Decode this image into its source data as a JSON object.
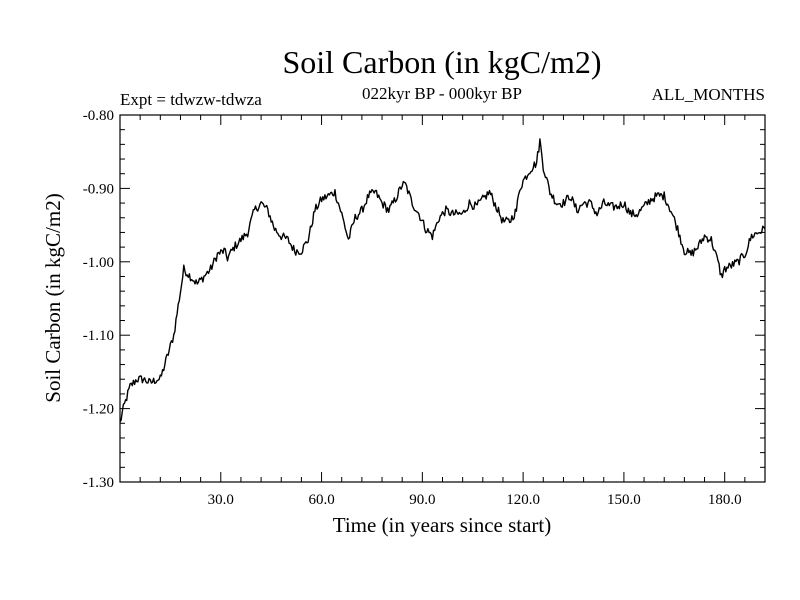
{
  "chart_data": {
    "type": "line",
    "title": "Soil Carbon (in kgC/m2)",
    "expt_label": "Expt = tdwzw-tdwza",
    "period_label": "022kyr BP - 000kyr BP",
    "months_label": "ALL_MONTHS",
    "xlabel": "Time (in years since start)",
    "ylabel": "Soil Carbon (in kgC/m2)",
    "xlim": [
      0,
      192
    ],
    "ylim": [
      -1.3,
      -0.8
    ],
    "xticks": [
      30,
      60,
      90,
      120,
      150,
      180
    ],
    "xtick_labels": [
      "30.0",
      "60.0",
      "90.0",
      "120.0",
      "150.0",
      "180.0"
    ],
    "yticks": [
      -1.3,
      -1.2,
      -1.1,
      -1.0,
      -0.9,
      -0.8
    ],
    "ytick_labels": [
      "-1.30",
      "-1.20",
      "-1.10",
      "-1.00",
      "-0.90",
      "-0.80"
    ],
    "series": [
      {
        "name": "Soil Carbon",
        "x": [
          0,
          1,
          3,
          5,
          7,
          9,
          11,
          12,
          14,
          16,
          17,
          18,
          19,
          21,
          23,
          25,
          27,
          29,
          31,
          32,
          34,
          36,
          38,
          40,
          42,
          44,
          46,
          48,
          50,
          52,
          54,
          56,
          58,
          60,
          62,
          64,
          66,
          68,
          70,
          72,
          74,
          76,
          78,
          80,
          82,
          84,
          85,
          87,
          89,
          91,
          93,
          95,
          97,
          99,
          102,
          104,
          106,
          108,
          110,
          112,
          114,
          116,
          118,
          119,
          120,
          122,
          124,
          125,
          126,
          128,
          130,
          132,
          134,
          136,
          138,
          140,
          142,
          144,
          146,
          148,
          150,
          152,
          154,
          156,
          158,
          160,
          162,
          164,
          166,
          168,
          170,
          172,
          174,
          176,
          178,
          179,
          180,
          182,
          184,
          186,
          188,
          190,
          192
        ],
        "values": [
          -1.22,
          -1.2,
          -1.17,
          -1.16,
          -1.16,
          -1.165,
          -1.16,
          -1.16,
          -1.13,
          -1.1,
          -1.07,
          -1.04,
          -1.01,
          -1.02,
          -1.03,
          -1.02,
          -1.01,
          -0.99,
          -0.985,
          -0.995,
          -0.98,
          -0.97,
          -0.96,
          -0.93,
          -0.92,
          -0.93,
          -0.955,
          -0.965,
          -0.97,
          -0.985,
          -0.985,
          -0.97,
          -0.93,
          -0.915,
          -0.91,
          -0.905,
          -0.935,
          -0.97,
          -0.94,
          -0.93,
          -0.91,
          -0.905,
          -0.92,
          -0.93,
          -0.915,
          -0.895,
          -0.895,
          -0.92,
          -0.935,
          -0.955,
          -0.965,
          -0.94,
          -0.93,
          -0.935,
          -0.935,
          -0.92,
          -0.925,
          -0.915,
          -0.905,
          -0.925,
          -0.945,
          -0.945,
          -0.93,
          -0.9,
          -0.89,
          -0.875,
          -0.865,
          -0.835,
          -0.87,
          -0.905,
          -0.92,
          -0.92,
          -0.91,
          -0.93,
          -0.92,
          -0.92,
          -0.935,
          -0.92,
          -0.925,
          -0.925,
          -0.92,
          -0.935,
          -0.935,
          -0.925,
          -0.915,
          -0.91,
          -0.91,
          -0.93,
          -0.955,
          -0.985,
          -0.99,
          -0.98,
          -0.965,
          -0.97,
          -1.0,
          -1.02,
          -1.01,
          -1.005,
          -1.0,
          -0.99,
          -0.965,
          -0.96,
          -0.955
        ]
      }
    ]
  }
}
